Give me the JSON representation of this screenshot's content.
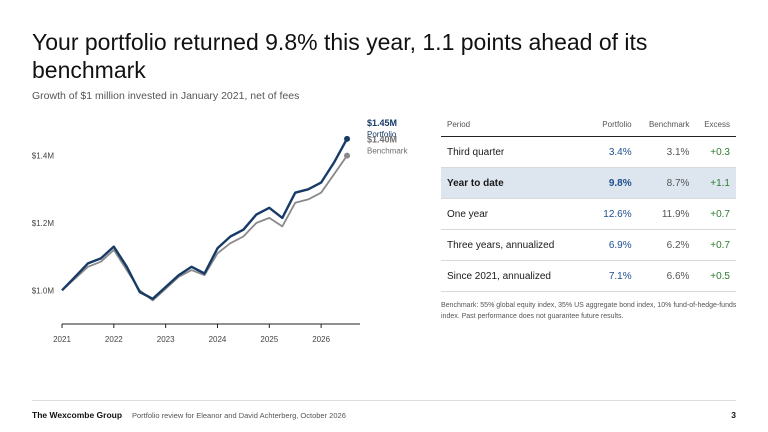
{
  "header": {
    "title": "Your portfolio returned 9.8% this year, 1.1 points ahead of its benchmark",
    "subtitle": "Growth of $1 million invested in January 2021, net of fees"
  },
  "chart_data": {
    "type": "line",
    "title": "",
    "xlabel": "",
    "ylabel": "",
    "x_ticks": [
      "2021",
      "2022",
      "2023",
      "2024",
      "2025",
      "2026"
    ],
    "y_ticks": [
      "$1.0M",
      "$1.2M",
      "$1.4M"
    ],
    "y_tick_values": [
      1.0,
      1.2,
      1.4
    ],
    "xlim": [
      2021.0,
      2026.75
    ],
    "ylim": [
      0.9,
      1.5
    ],
    "grid": false,
    "x": [
      2021.0,
      2021.25,
      2021.5,
      2021.75,
      2022.0,
      2022.25,
      2022.5,
      2022.75,
      2023.0,
      2023.25,
      2023.5,
      2023.75,
      2024.0,
      2024.25,
      2024.5,
      2024.75,
      2025.0,
      2025.25,
      2025.5,
      2025.75,
      2026.0,
      2026.25,
      2026.5
    ],
    "series": [
      {
        "name": "Portfolio",
        "color": "#173a66",
        "end_label": "$1.45M",
        "values": [
          1.0,
          1.04,
          1.08,
          1.095,
          1.13,
          1.07,
          0.995,
          0.975,
          1.01,
          1.045,
          1.07,
          1.05,
          1.125,
          1.16,
          1.18,
          1.225,
          1.245,
          1.215,
          1.29,
          1.3,
          1.32,
          1.38,
          1.45
        ]
      },
      {
        "name": "Benchmark",
        "color": "#8a8a8a",
        "end_label": "$1.40M",
        "values": [
          1.0,
          1.035,
          1.07,
          1.085,
          1.12,
          1.06,
          1.0,
          0.97,
          1.005,
          1.04,
          1.06,
          1.045,
          1.11,
          1.14,
          1.16,
          1.2,
          1.215,
          1.19,
          1.26,
          1.27,
          1.29,
          1.345,
          1.4
        ]
      }
    ]
  },
  "table": {
    "headers": [
      "Period",
      "Portfolio",
      "Benchmark",
      "Excess"
    ],
    "rows": [
      {
        "period": "Third quarter",
        "portfolio": "3.4%",
        "benchmark": "3.1%",
        "excess": "+0.3"
      },
      {
        "period": "Year to date",
        "portfolio": "9.8%",
        "benchmark": "8.7%",
        "excess": "+1.1"
      },
      {
        "period": "One year",
        "portfolio": "12.6%",
        "benchmark": "11.9%",
        "excess": "+0.7"
      },
      {
        "period": "Three years, annualized",
        "portfolio": "6.9%",
        "benchmark": "6.2%",
        "excess": "+0.7"
      },
      {
        "period": "Since 2021, annualized",
        "portfolio": "7.1%",
        "benchmark": "6.6%",
        "excess": "+0.5"
      }
    ]
  },
  "note": "Benchmark: 55% global equity index, 35% US aggregate bond index, 10% fund-of-hedge-funds index. Past performance does not guarantee future results.",
  "footer": {
    "brand": "The Wexcombe Group",
    "text": "Portfolio review for Eleanor and David Achterberg, October 2026",
    "page": "3"
  }
}
